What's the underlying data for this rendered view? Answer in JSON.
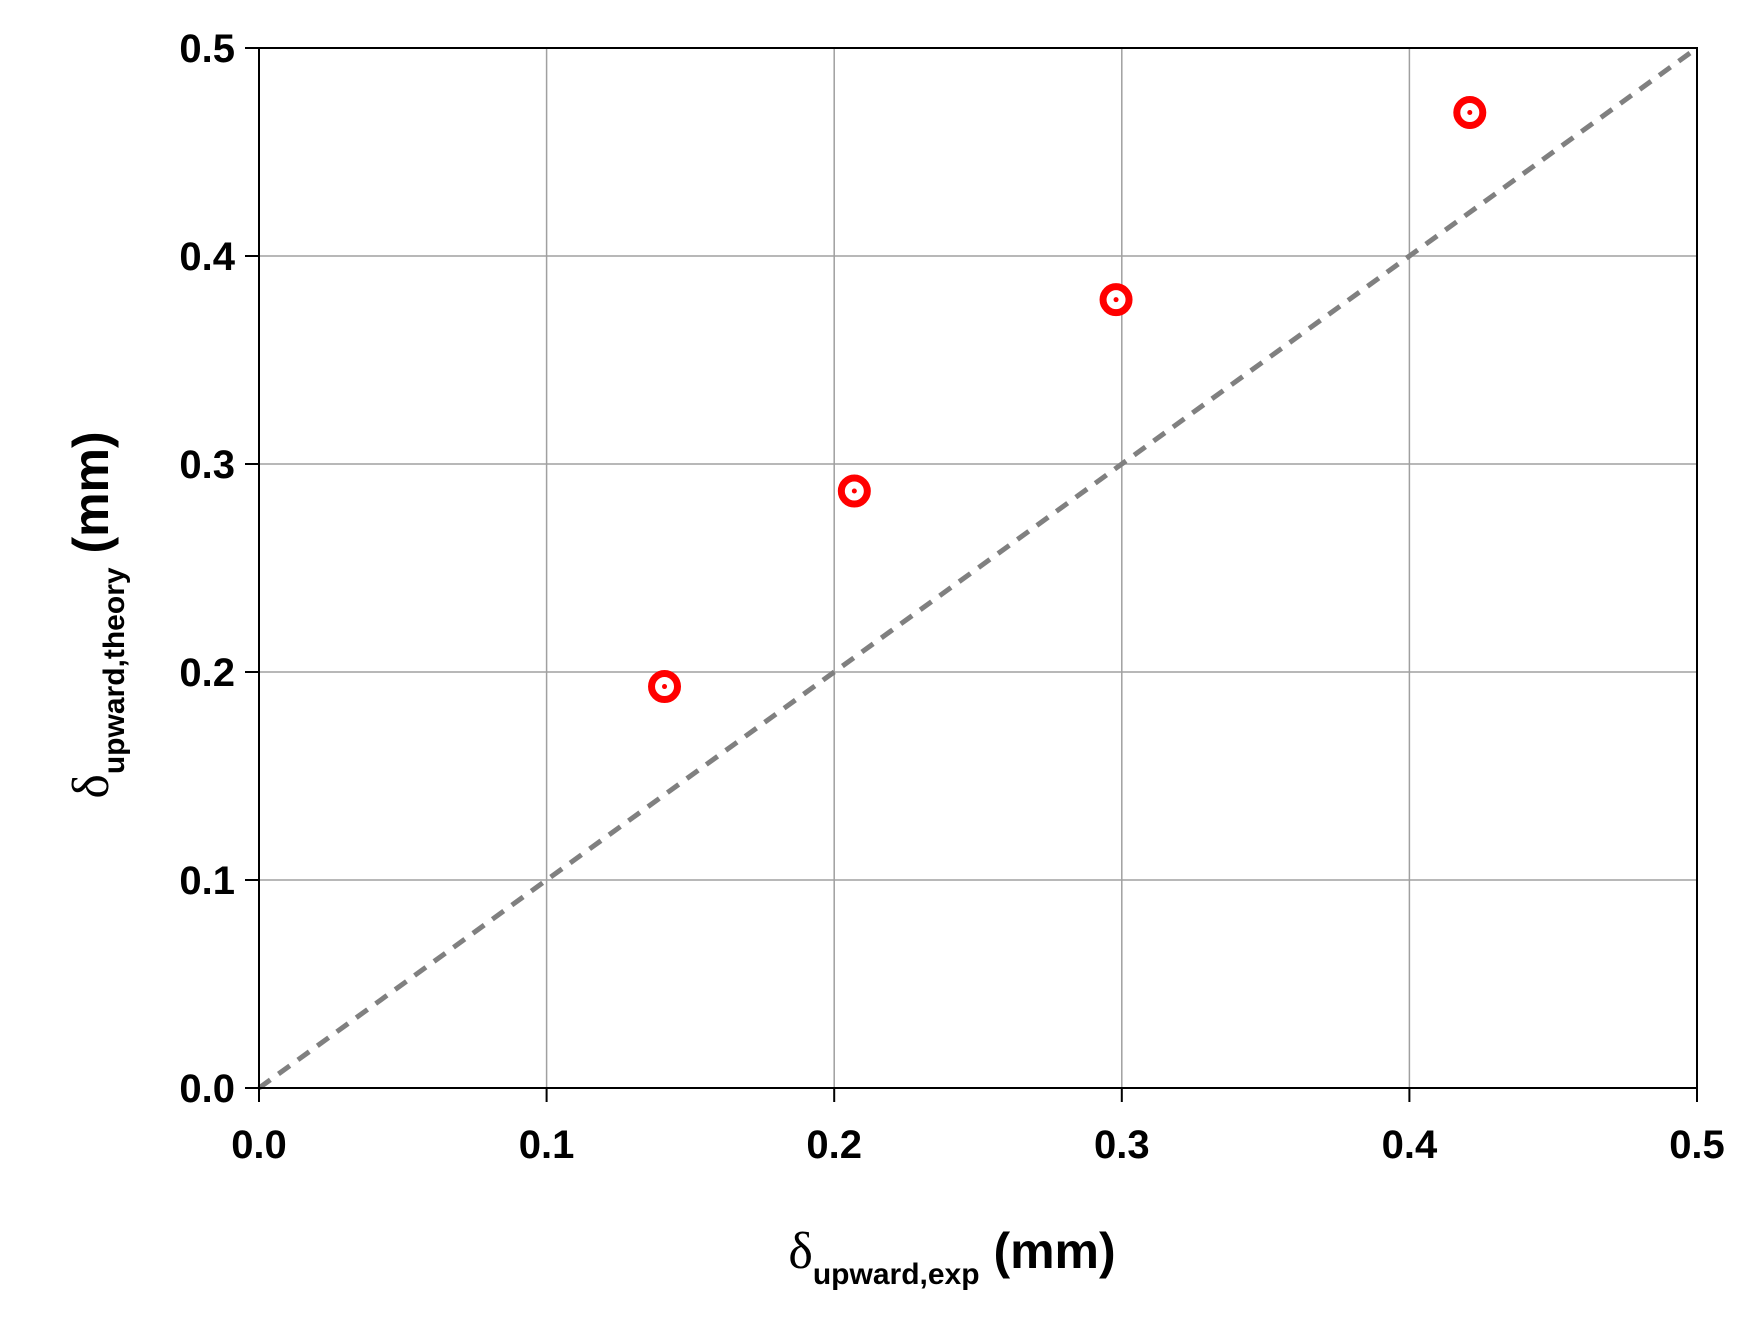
{
  "chart_data": {
    "type": "scatter",
    "title": "",
    "xlabel": {
      "symbol": "δ",
      "subscript": "upward,exp",
      "unit": " (mm)"
    },
    "ylabel": {
      "symbol": "δ",
      "subscript": "upward,theory",
      "unit": " (mm)"
    },
    "xlim": [
      0.0,
      0.5
    ],
    "ylim": [
      0.0,
      0.5
    ],
    "xticks": [
      "0.0",
      "0.1",
      "0.2",
      "0.3",
      "0.4",
      "0.5"
    ],
    "yticks": [
      "0.0",
      "0.1",
      "0.2",
      "0.3",
      "0.4",
      "0.5"
    ],
    "grid": true,
    "legend": "none",
    "series": [
      {
        "marker": "circle-dot",
        "color": "#ff0000",
        "points": [
          {
            "x": 0.141,
            "y": 0.193
          },
          {
            "x": 0.207,
            "y": 0.287
          },
          {
            "x": 0.298,
            "y": 0.379
          },
          {
            "x": 0.421,
            "y": 0.469
          }
        ]
      }
    ],
    "reference_line": {
      "style": "dashed",
      "color": "#808080",
      "from": [
        0.0,
        0.0
      ],
      "to": [
        0.5,
        0.5
      ]
    },
    "gridline_color": "#a0a0a0"
  }
}
